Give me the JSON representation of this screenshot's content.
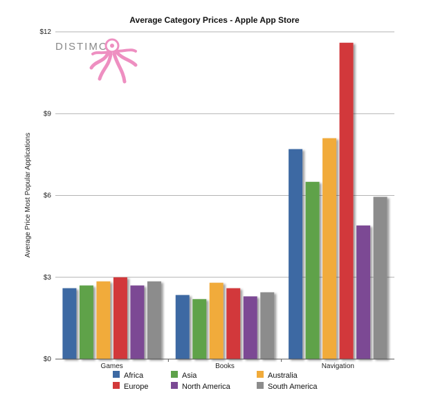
{
  "chart_data": {
    "type": "bar",
    "title": "Average Category Prices - Apple App Store",
    "xlabel": "",
    "ylabel": "Average Price Most Popular Applications",
    "ylim": [
      0,
      12
    ],
    "yticks": [
      "$0",
      "$3",
      "$6",
      "$9",
      "$12"
    ],
    "categories": [
      "Games",
      "Books",
      "Navigation"
    ],
    "series": [
      {
        "name": "Africa",
        "values": [
          2.6,
          2.35,
          7.7
        ]
      },
      {
        "name": "Asia",
        "values": [
          2.7,
          2.2,
          6.5
        ]
      },
      {
        "name": "Australia",
        "values": [
          2.85,
          2.8,
          8.1
        ]
      },
      {
        "name": "Europe",
        "values": [
          3.0,
          2.6,
          11.6
        ]
      },
      {
        "name": "North America",
        "values": [
          2.7,
          2.3,
          4.9
        ]
      },
      {
        "name": "South America",
        "values": [
          2.85,
          2.45,
          5.95
        ]
      }
    ],
    "colors": [
      "#3d69a3",
      "#5ea24a",
      "#f1ab3a",
      "#d2393a",
      "#7b4a94",
      "#8c8c8c"
    ],
    "grid": true,
    "legend_position": "bottom"
  },
  "logo": {
    "text": "DISTIMO",
    "color": "#ee8fc1"
  }
}
